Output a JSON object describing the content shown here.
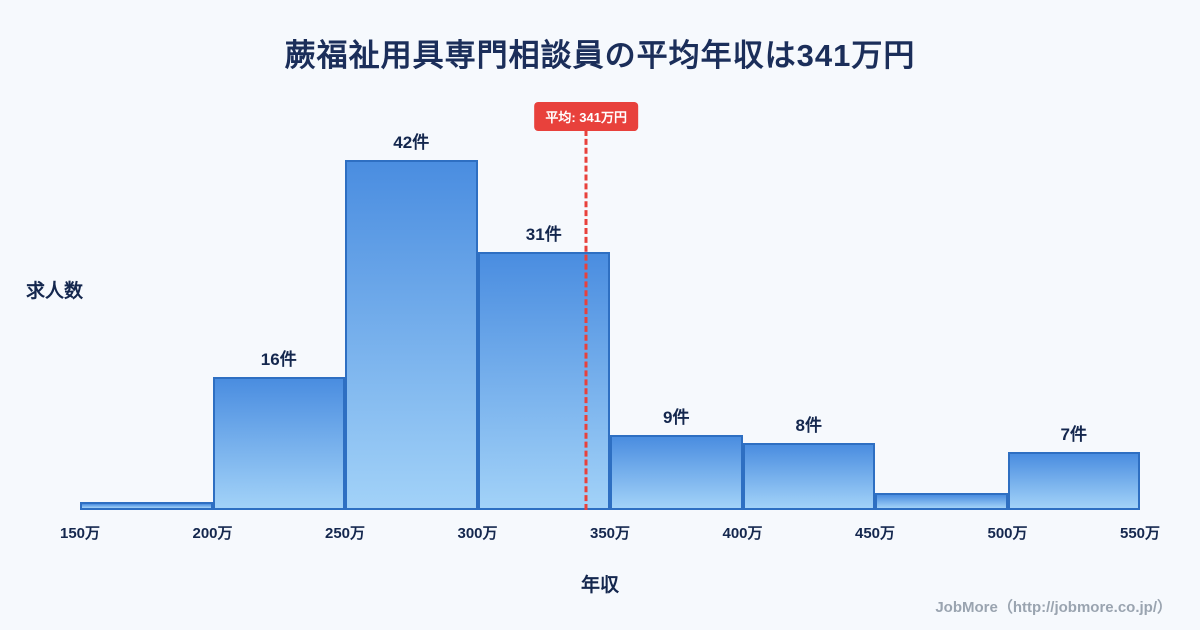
{
  "page": {
    "title": "蕨福祉用具専門相談員の平均年収は341万円",
    "footer": "JobMore（http://jobmore.co.jp/）"
  },
  "chart_data": {
    "type": "bar",
    "title": "蕨福祉用具専門相談員の平均年収は341万円",
    "xlabel": "年収",
    "ylabel": "求人数",
    "bin_edge_labels": [
      "150万",
      "200万",
      "250万",
      "300万",
      "350万",
      "400万",
      "450万",
      "500万",
      "550万"
    ],
    "x_range": [
      150,
      550
    ],
    "values": [
      1,
      16,
      42,
      31,
      9,
      8,
      2,
      7
    ],
    "bar_labels": [
      "",
      "16件",
      "42件",
      "31件",
      "9件",
      "8件",
      "",
      "7件"
    ],
    "ylim": [
      0,
      45
    ],
    "grid": false,
    "legend": false,
    "average": {
      "value": 341,
      "label": "平均: 341万円"
    },
    "colors": {
      "background": "#f6f9fd",
      "bar_top": "#4a8de0",
      "bar_bottom": "#a2d2f8",
      "bar_border": "#2e6fc2",
      "average_line": "#e8413c",
      "title_text": "#1b2e5a",
      "axis_text": "#14274e",
      "footer_text": "#9aa4b0"
    }
  }
}
